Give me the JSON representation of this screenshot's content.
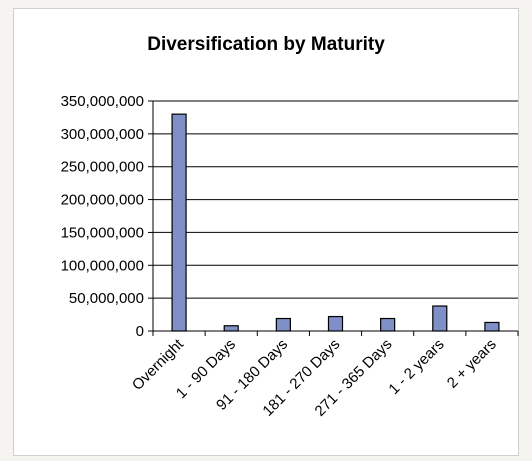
{
  "chart_data": {
    "type": "bar",
    "title": "Diversification by Maturity",
    "xlabel": "",
    "ylabel": "",
    "categories": [
      "Overnight",
      "1 - 90 Days",
      "91 - 180 Days",
      "181 - 270 Days",
      "271 - 365 Days",
      "1 - 2 years",
      "2 + years"
    ],
    "values": [
      330000000,
      8000000,
      19000000,
      22000000,
      19000000,
      38000000,
      13000000
    ],
    "ylim": [
      0,
      350000000
    ],
    "yticks": [
      "0",
      "50,000,000",
      "100,000,000",
      "150,000,000",
      "200,000,000",
      "250,000,000",
      "300,000,000",
      "350,000,000"
    ],
    "grid": true,
    "legend": "none",
    "bar_color": "#7f8fc7"
  }
}
